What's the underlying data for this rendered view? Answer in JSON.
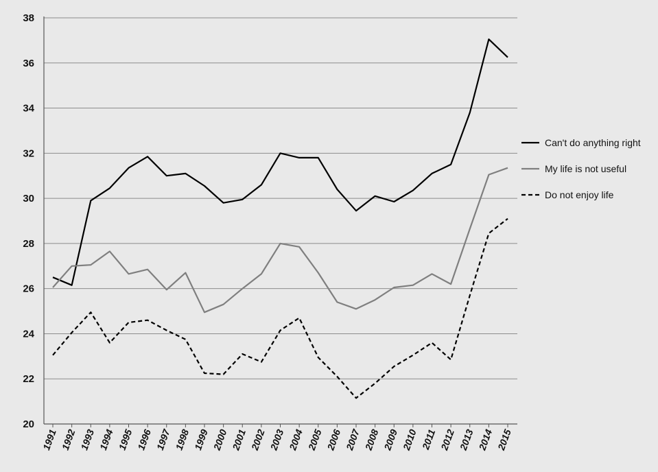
{
  "chart_data": {
    "type": "line",
    "title": "",
    "xlabel": "",
    "ylabel": "",
    "ylim": [
      20,
      38
    ],
    "yticks": [
      20,
      22,
      24,
      26,
      28,
      30,
      32,
      34,
      36,
      38
    ],
    "grid": "horizontal",
    "legend_position": "right",
    "x": [
      "1991",
      "1992",
      "1993",
      "1994",
      "1995",
      "1996",
      "1997",
      "1998",
      "1999",
      "2000",
      "2001",
      "2002",
      "2003",
      "2004",
      "2005",
      "2006",
      "2007",
      "2008",
      "2009",
      "2010",
      "2011",
      "2012",
      "2013",
      "2014",
      "2015"
    ],
    "series": [
      {
        "name": "Can't do anything right",
        "color": "#000000",
        "style": "solid",
        "values": [
          26.5,
          26.15,
          29.9,
          30.45,
          31.35,
          31.85,
          31.0,
          31.1,
          30.55,
          29.8,
          29.95,
          30.6,
          32.0,
          31.8,
          31.8,
          30.4,
          29.45,
          30.1,
          29.85,
          30.35,
          31.1,
          31.5,
          33.8,
          37.05,
          36.25
        ]
      },
      {
        "name": "My life is not useful",
        "color": "#7f7f7f",
        "style": "solid",
        "values": [
          26.05,
          27.0,
          27.05,
          27.65,
          26.65,
          26.85,
          25.95,
          26.7,
          24.95,
          25.3,
          26.0,
          26.65,
          28.0,
          27.85,
          26.7,
          25.4,
          25.1,
          25.5,
          26.05,
          26.15,
          26.65,
          26.2,
          28.65,
          31.05,
          31.35
        ]
      },
      {
        "name": "Do not enjoy life",
        "color": "#000000",
        "style": "dashed",
        "values": [
          23.05,
          24.05,
          24.95,
          23.6,
          24.5,
          24.6,
          24.15,
          23.75,
          22.25,
          22.2,
          23.1,
          22.75,
          24.15,
          24.7,
          22.95,
          22.1,
          21.15,
          21.8,
          22.55,
          23.05,
          23.6,
          22.85,
          25.7,
          28.45,
          29.1
        ]
      }
    ]
  }
}
